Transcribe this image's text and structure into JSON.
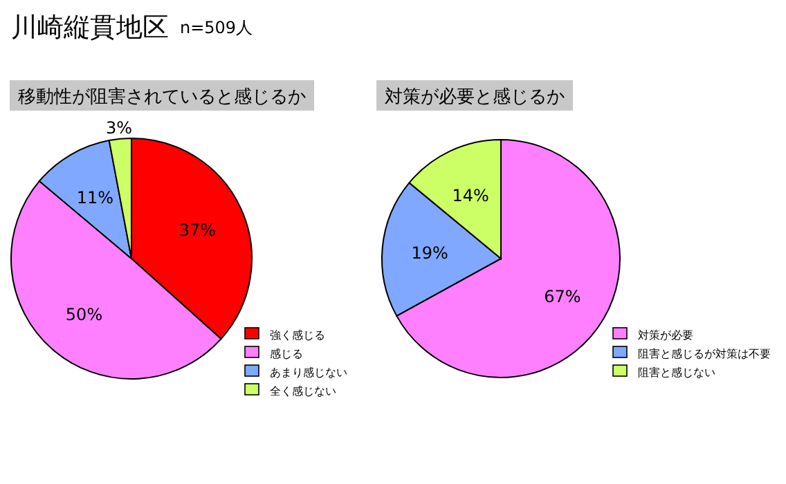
{
  "chart_data": [
    {
      "type": "pie",
      "title": "移動性が阻害されていると感じるか",
      "annotations": [
        "川崎縦貫地区",
        "n=509人"
      ],
      "categories": [
        "強く感じる",
        "感じる",
        "あまり感じない",
        "全く感じない"
      ],
      "values": [
        37,
        50,
        11,
        3
      ],
      "value_labels": [
        "37%",
        "50%",
        "11%",
        "3%"
      ],
      "colors": [
        "#ff0000",
        "#ff80ff",
        "#80a8ff",
        "#ccff66"
      ],
      "legend": "bottom right"
    },
    {
      "type": "pie",
      "title": "対策が必要と感じるか",
      "categories": [
        "対策が必要",
        "阻害と感じるが対策は不要",
        "阻害と感じない"
      ],
      "values": [
        67,
        19,
        14
      ],
      "value_labels": [
        "67%",
        "19%",
        "14%"
      ],
      "colors": [
        "#ff80ff",
        "#80a8ff",
        "#ccff66"
      ],
      "legend": "bottom right"
    }
  ]
}
